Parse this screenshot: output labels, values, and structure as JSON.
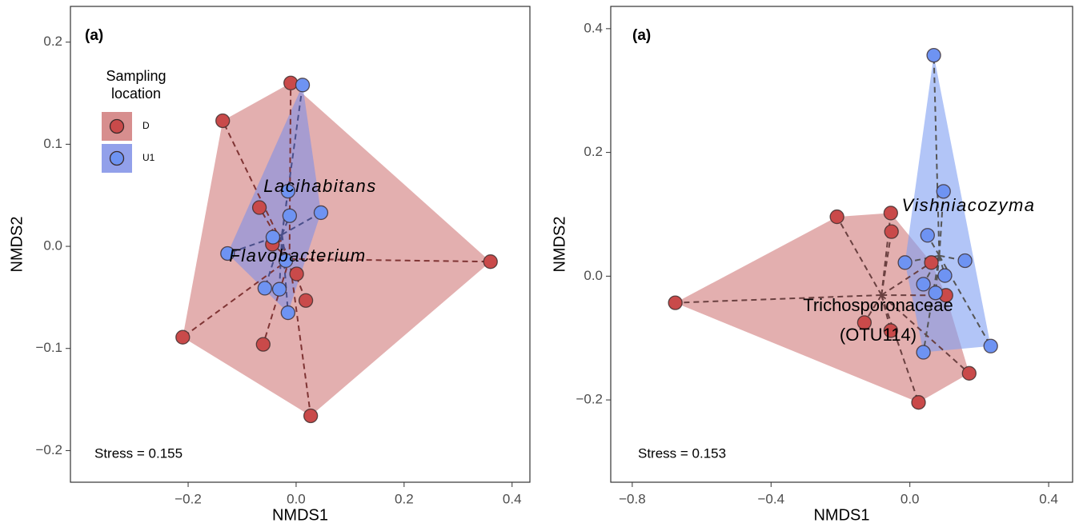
{
  "chart_data": [
    {
      "type": "scatter",
      "title": "(a)",
      "xlabel": "NMDS1",
      "ylabel": "NMDS2",
      "stress": "Stress = 0.155",
      "legend": true,
      "legend_title": [
        "Sampling",
        "location"
      ],
      "annotations": [
        {
          "text": "Lacihabitans",
          "italic": true
        },
        {
          "text": "Flavobacterium",
          "italic": true
        }
      ],
      "xlim": [
        -0.418,
        0.433
      ],
      "ylim": [
        -0.231,
        0.235
      ],
      "xticks": [
        {
          "value": -0.2,
          "label": "−0.2"
        },
        {
          "value": 0,
          "label": "0.0"
        },
        0.2,
        0.4
      ],
      "yticks": [
        {
          "value": -0.2,
          "label": "−0.2"
        },
        {
          "value": -0.1,
          "label": "−0.1"
        },
        {
          "value": 0,
          "label": "0.0"
        },
        0.1,
        0.2
      ],
      "series": [
        {
          "name": "D",
          "color": "#c94a4a",
          "hull_color": "#d07a7a",
          "line_color": "#7f3434",
          "x": [
            -0.01,
            -0.136,
            -0.068,
            -0.044,
            0.001,
            0.018,
            -0.061,
            -0.21,
            0.027,
            0.36
          ],
          "y": [
            0.16,
            0.123,
            0.038,
            0.002,
            -0.027,
            -0.053,
            -0.096,
            -0.089,
            -0.166,
            -0.015
          ]
        },
        {
          "name": "U1",
          "color": "#6e93f2",
          "hull_color": "#7f8fe6",
          "line_color": "#4a4f8a",
          "x": [
            0.012,
            -0.015,
            -0.012,
            0.046,
            -0.043,
            -0.127,
            -0.019,
            -0.058,
            -0.031,
            -0.015
          ],
          "y": [
            0.158,
            0.054,
            0.03,
            0.033,
            0.009,
            -0.007,
            -0.014,
            -0.041,
            -0.042,
            -0.065
          ]
        }
      ]
    },
    {
      "type": "scatter",
      "title": "(a)",
      "xlabel": "NMDS1",
      "ylabel": "NMDS2",
      "stress": "Stress = 0.153",
      "legend": false,
      "annotations": [
        {
          "text": "Vishniacozyma",
          "italic": true
        },
        {
          "text": "Trichosporonaceae",
          "italic": false
        },
        {
          "text": "(OTU114)",
          "italic": false
        }
      ],
      "xlim": [
        -0.862,
        0.469
      ],
      "ylim": [
        -0.333,
        0.436
      ],
      "xticks": [
        {
          "value": -0.8,
          "label": "−0.8"
        },
        {
          "value": -0.4,
          "label": "−0.4"
        },
        {
          "value": 0,
          "label": "0.0"
        },
        0.4
      ],
      "yticks": [
        {
          "value": -0.2,
          "label": "−0.2"
        },
        {
          "value": 0,
          "label": "0.0"
        },
        0.2,
        0.4
      ],
      "series": [
        {
          "color": "#c94a4a",
          "hull_color": "#d07a7a",
          "line_color": "#6a4040",
          "x": [
            -0.676,
            -0.21,
            -0.055,
            -0.053,
            0.062,
            0.104,
            -0.131,
            -0.055,
            0.171,
            0.025
          ],
          "y": [
            -0.043,
            0.096,
            0.102,
            0.072,
            0.022,
            -0.031,
            -0.075,
            -0.088,
            -0.157,
            -0.204
          ]
        },
        {
          "color": "#6e93f2",
          "hull_color": "#7f9ff2",
          "line_color": "#555555",
          "x": [
            0.069,
            0.097,
            0.051,
            -0.014,
            0.159,
            0.101,
            0.039,
            0.074,
            0.039,
            0.233
          ],
          "y": [
            0.357,
            0.137,
            0.066,
            0.022,
            0.025,
            0.001,
            -0.013,
            -0.027,
            -0.123,
            -0.113
          ]
        }
      ]
    }
  ]
}
